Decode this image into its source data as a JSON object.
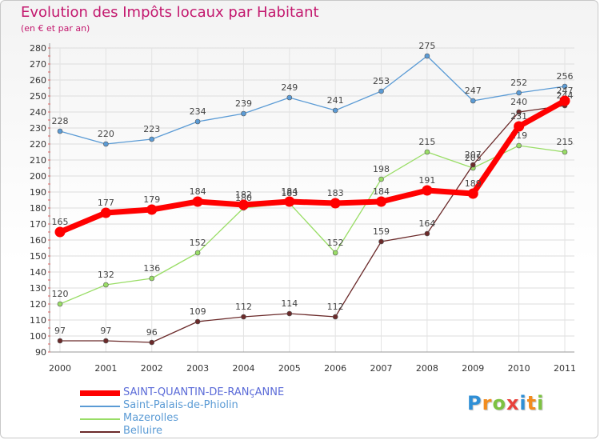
{
  "header": {
    "title": "Evolution des Impôts locaux par Habitant",
    "subtitle": "(en € et par an)"
  },
  "logo": {
    "letters": [
      "P",
      "r",
      "o",
      "x",
      "i",
      "t",
      "i"
    ],
    "colors": [
      "#2f8fd6",
      "#f28c1e",
      "#7dc242",
      "#e8423c",
      "#2f8fd6",
      "#f28c1e",
      "#7dc242"
    ]
  },
  "chart_data": {
    "type": "line",
    "title": "Evolution des Impôts locaux par Habitant",
    "subtitle": "(en € et par an)",
    "xlabel": "",
    "ylabel": "",
    "x": [
      "2000",
      "2001",
      "2002",
      "2003",
      "2004",
      "2005",
      "2006",
      "2007",
      "2008",
      "2009",
      "2010",
      "2011"
    ],
    "ylim": [
      90,
      280
    ],
    "yticks": [
      90,
      100,
      110,
      120,
      130,
      140,
      150,
      160,
      170,
      180,
      190,
      200,
      210,
      220,
      230,
      240,
      250,
      260,
      270,
      280
    ],
    "grid": true,
    "legend_position": "bottom-left",
    "series": [
      {
        "name": "Saint-Palais-de-Phiolin",
        "color": "#5b9bd5",
        "values": [
          228,
          220,
          223,
          234,
          239,
          249,
          241,
          253,
          275,
          247,
          252,
          256
        ]
      },
      {
        "name": "Mazerolles",
        "color": "#99dd66",
        "values": [
          120,
          132,
          136,
          152,
          180,
          183,
          152,
          198,
          215,
          205,
          219,
          215
        ]
      },
      {
        "name": "Belluire",
        "color": "#6b2a2a",
        "values": [
          97,
          97,
          96,
          109,
          112,
          114,
          112,
          159,
          164,
          207,
          240,
          244
        ]
      },
      {
        "name": "SAINT-QUANTIN-DE-RANçANNE",
        "color": "#ff0000",
        "values": [
          165,
          177,
          179,
          184,
          182,
          184,
          183,
          184,
          191,
          189,
          231,
          247
        ]
      }
    ],
    "legend": [
      {
        "name": "SAINT-QUANTIN-DE-RANçANNE",
        "color": "#ff0000"
      },
      {
        "name": "Saint-Palais-de-Phiolin",
        "color": "#5b9bd5"
      },
      {
        "name": "Mazerolles",
        "color": "#99dd66"
      },
      {
        "name": "Belluire",
        "color": "#6b2a2a"
      }
    ]
  }
}
